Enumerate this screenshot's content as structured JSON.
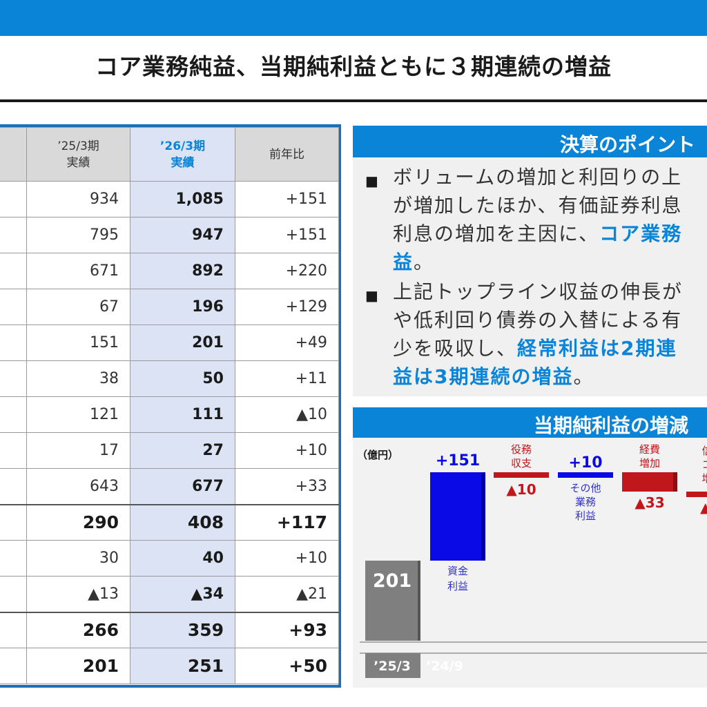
{
  "header": {
    "title": "コア業務純益、当期純利益ともに３期連続の増益",
    "accent_color": "#0a84d6"
  },
  "table": {
    "columns": [
      {
        "line1": "’25/3期",
        "line2": "実績"
      },
      {
        "line1": "’26/3期",
        "line2": "実績"
      },
      {
        "line1": "前年比",
        "line2": ""
      }
    ],
    "rows": [
      {
        "prev": "934",
        "cur": "1,085",
        "diff": "+151",
        "bold": false
      },
      {
        "prev": "795",
        "cur": "947",
        "diff": "+151",
        "bold": false
      },
      {
        "prev": "671",
        "cur": "892",
        "diff": "+220",
        "bold": false
      },
      {
        "prev": "67",
        "cur": "196",
        "diff": "+129",
        "bold": false
      },
      {
        "prev": "151",
        "cur": "201",
        "diff": "+49",
        "bold": false
      },
      {
        "prev": "38",
        "cur": "50",
        "diff": "+11",
        "bold": false
      },
      {
        "prev": "121",
        "cur": "111",
        "diff": "▲10",
        "bold": false
      },
      {
        "prev": "17",
        "cur": "27",
        "diff": "+10",
        "bold": false
      },
      {
        "prev": "643",
        "cur": "677",
        "diff": "+33",
        "bold": false
      },
      {
        "prev": "290",
        "cur": "408",
        "diff": "+117",
        "bold": true
      },
      {
        "prev": "30",
        "cur": "40",
        "diff": "+10",
        "bold": false
      },
      {
        "prev": "▲13",
        "cur": "▲34",
        "diff": "▲21",
        "bold": false
      },
      {
        "prev": "266",
        "cur": "359",
        "diff": "+93",
        "bold": true
      },
      {
        "prev": "201",
        "cur": "251",
        "diff": "+50",
        "bold": true
      }
    ]
  },
  "points": {
    "title": "決算のポイント",
    "p1": {
      "a": "ボリュームの増加と利回りの上",
      "b": "が増加したほか、有価証券利息",
      "c": "利息の増加を主因に、",
      "c_hl": "コア業務",
      "d_hl": "益",
      "d": "。"
    },
    "p2": {
      "a": "上記トップライン収益の伸長が",
      "b": "や低利回り債券の入替による有",
      "c": "少を吸収し、",
      "c_hl": "経常利益は2期連",
      "d_hl": "益は3期連続の増益",
      "d": "。"
    },
    "bullet": "■"
  },
  "waterfall": {
    "title": "当期純利益の増減",
    "unit": "（億円）",
    "base": {
      "label": "201",
      "axis": "’25/3",
      "value": 201
    },
    "axis_faint": "’24/9",
    "steps": [
      {
        "value": "+151",
        "label1": "資金",
        "label2": "利益",
        "label3": "",
        "color": "#0a0ae6"
      },
      {
        "value": "▲10",
        "label1": "役務",
        "label2": "収支",
        "label3": "",
        "color": "#c0171c"
      },
      {
        "value": "+10",
        "label1": "その他",
        "label2": "業務",
        "label3": "利益",
        "color": "#0a0ae6"
      },
      {
        "value": "▲33",
        "label1": "経費",
        "label2": "増加",
        "label3": "",
        "color": "#c0171c"
      },
      {
        "value": "",
        "label1": "信",
        "label2": "コ",
        "label3": "増",
        "color": "#c0171c"
      }
    ]
  }
}
